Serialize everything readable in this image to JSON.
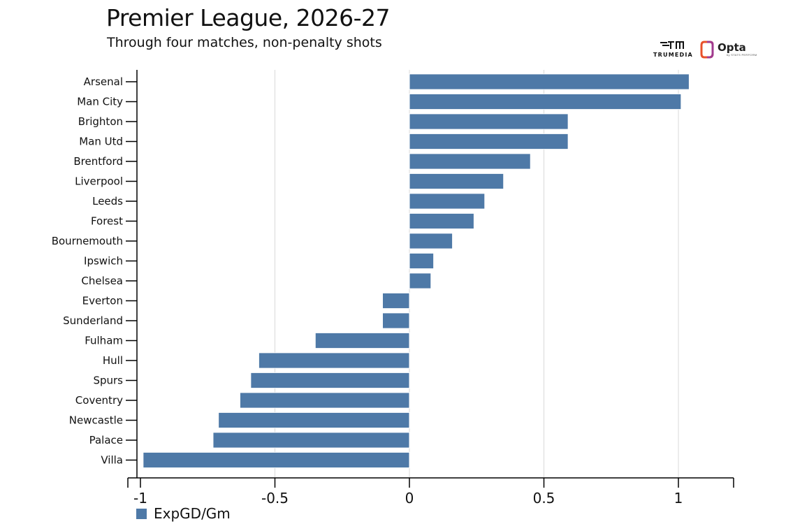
{
  "header": {
    "title": "Premier League, 2026-27",
    "subtitle": "Through four matches, non-penalty shots"
  },
  "logos": {
    "trumedia": "TRUMEDIA",
    "opta": "Opta",
    "opta_sub": "by STATS PERFORM"
  },
  "colors": {
    "bar": "#4e79a7",
    "grid": "#d9d9d9",
    "axis": "#000000"
  },
  "legend": {
    "label": "ExpGD/Gm"
  },
  "chart_data": {
    "type": "bar",
    "orientation": "horizontal",
    "categories": [
      "Arsenal",
      "Man City",
      "Brighton",
      "Man Utd",
      "Brentford",
      "Liverpool",
      "Leeds",
      "Forest",
      "Bournemouth",
      "Ipswich",
      "Chelsea",
      "Everton",
      "Sunderland",
      "Fulham",
      "Hull",
      "Spurs",
      "Coventry",
      "Newcastle",
      "Palace",
      "Villa"
    ],
    "series": [
      {
        "name": "ExpGD/Gm",
        "values": [
          1.04,
          1.01,
          0.59,
          0.59,
          0.45,
          0.35,
          0.28,
          0.24,
          0.16,
          0.09,
          0.08,
          -0.1,
          -0.1,
          -0.35,
          -0.56,
          -0.59,
          -0.63,
          -0.71,
          -0.73,
          -0.99
        ]
      }
    ],
    "xlim": [
      -1.03,
      1.2
    ],
    "xticks": [
      -1,
      -0.5,
      0,
      0.5,
      1
    ],
    "xtick_labels": [
      "-1",
      "-0.5",
      "0",
      "0.5",
      "1"
    ],
    "grid": "vertical",
    "legend_position": "bottom-left"
  }
}
